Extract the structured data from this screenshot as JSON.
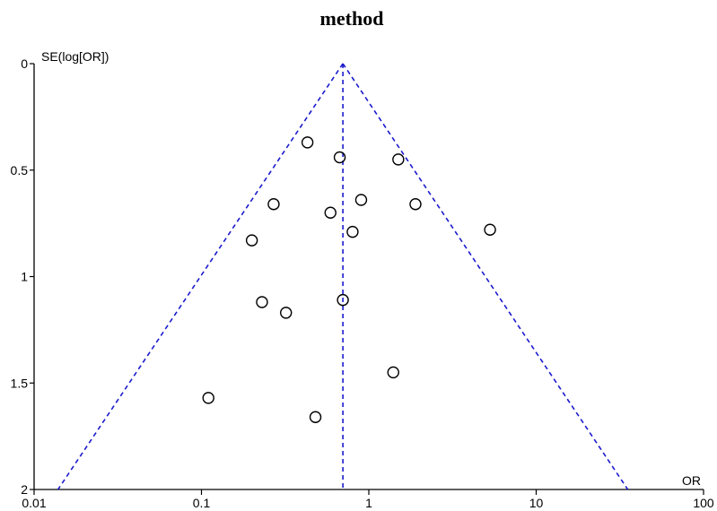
{
  "chart_data": {
    "type": "scatter",
    "subtype": "funnel-plot",
    "title": "method",
    "xlabel": "OR",
    "ylabel": "SE(log[OR])",
    "x_scale": "log",
    "xlim": [
      0.01,
      100
    ],
    "ylim": [
      0,
      2
    ],
    "y_inverted": true,
    "xticks": [
      "0.01",
      "0.1",
      "1",
      "10",
      "100"
    ],
    "yticks": [
      "0",
      "0.5",
      "1",
      "1.5",
      "2"
    ],
    "pooled_or": 0.7,
    "funnel_ci": "95% pseudo confidence limits",
    "line_color": "#1a1acc",
    "marker": "open-circle",
    "grid": false,
    "points": [
      {
        "or": 0.43,
        "se": 0.37
      },
      {
        "or": 0.67,
        "se": 0.44
      },
      {
        "or": 1.5,
        "se": 0.45
      },
      {
        "or": 0.9,
        "se": 0.64
      },
      {
        "or": 0.27,
        "se": 0.66
      },
      {
        "or": 1.9,
        "se": 0.66
      },
      {
        "or": 0.59,
        "se": 0.7
      },
      {
        "or": 5.3,
        "se": 0.78
      },
      {
        "or": 0.8,
        "se": 0.79
      },
      {
        "or": 0.2,
        "se": 0.83
      },
      {
        "or": 0.7,
        "se": 1.11
      },
      {
        "or": 0.23,
        "se": 1.12
      },
      {
        "or": 0.32,
        "se": 1.17
      },
      {
        "or": 1.4,
        "se": 1.45
      },
      {
        "or": 0.11,
        "se": 1.57
      },
      {
        "or": 0.48,
        "se": 1.66
      }
    ]
  }
}
